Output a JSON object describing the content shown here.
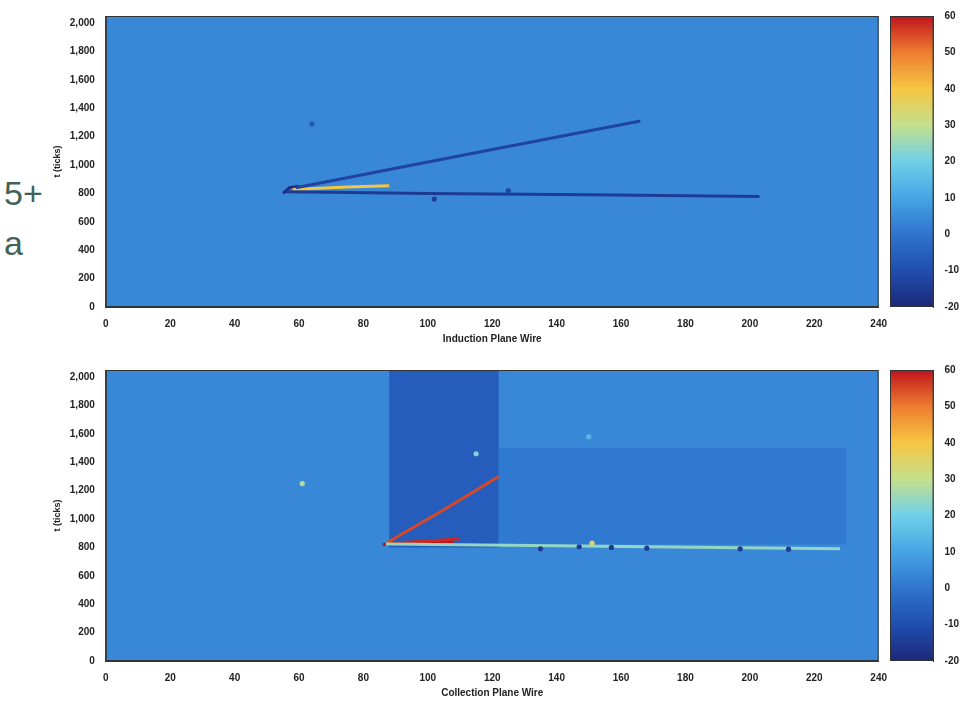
{
  "chart_data": [
    {
      "type": "heatmap",
      "x_label": "Induction Plane Wire",
      "y_label": "t (ticks)",
      "xlim": [
        0,
        240
      ],
      "xticks": [
        0,
        20,
        40,
        60,
        80,
        100,
        120,
        140,
        160,
        180,
        200,
        220,
        240
      ],
      "ylim": [
        0,
        2050
      ],
      "yticks": [
        0,
        200,
        400,
        600,
        800,
        1000,
        1200,
        1400,
        1600,
        1800,
        2000
      ],
      "grid": false,
      "background_value": 4,
      "regions": [],
      "tracks": [
        {
          "points": [
            [
              56,
              812
            ],
            [
              100,
              800
            ],
            [
              150,
              790
            ],
            [
              203,
              778
            ]
          ],
          "value": -15
        },
        {
          "points": [
            [
              59,
              840
            ],
            [
              110,
              1065
            ],
            [
              166,
              1310
            ]
          ],
          "value": -13
        },
        {
          "points": [
            [
              58,
              828
            ],
            [
              75,
              845
            ],
            [
              88,
              855
            ]
          ],
          "value": 40
        },
        {
          "points": [
            [
              55,
              800
            ],
            [
              57,
              840
            ],
            [
              60,
              850
            ]
          ],
          "value": -18
        }
      ],
      "hits": [
        {
          "x": 102,
          "t": 760,
          "value": -14
        },
        {
          "x": 125,
          "t": 820,
          "value": -12
        },
        {
          "x": 64,
          "t": 1290,
          "value": -8
        }
      ],
      "colorbar": {
        "range": [
          -20,
          60
        ],
        "ticks": [
          -20,
          -10,
          0,
          10,
          20,
          30,
          40,
          50,
          60
        ]
      }
    },
    {
      "type": "heatmap",
      "x_label": "Collection Plane Wire",
      "y_label": "t (ticks)",
      "xlim": [
        0,
        240
      ],
      "xticks": [
        0,
        20,
        40,
        60,
        80,
        100,
        120,
        140,
        160,
        180,
        200,
        220,
        240
      ],
      "ylim": [
        0,
        2050
      ],
      "yticks": [
        0,
        200,
        400,
        600,
        800,
        1000,
        1200,
        1400,
        1600,
        1800,
        2000
      ],
      "grid": false,
      "background_value": 4,
      "regions": [
        {
          "points": [
            [
              122,
              820
            ],
            [
              230,
              820
            ],
            [
              230,
              1500
            ],
            [
              122,
              1500
            ]
          ],
          "value": 1
        },
        {
          "points": [
            [
              88,
              800
            ],
            [
              122,
              800
            ],
            [
              122,
              2050
            ],
            [
              88,
              2050
            ]
          ],
          "value": -6
        }
      ],
      "tracks": [
        {
          "points": [
            [
              87,
              825
            ],
            [
              140,
              812
            ],
            [
              190,
              800
            ],
            [
              228,
              790
            ]
          ],
          "value": 24
        },
        {
          "points": [
            [
              87,
              830
            ],
            [
              105,
              1065
            ],
            [
              122,
              1300
            ]
          ],
          "value": 55
        },
        {
          "points": [
            [
              87,
              828
            ],
            [
              100,
              845
            ],
            [
              110,
              862
            ]
          ],
          "value": 58
        },
        {
          "points": [
            [
              86,
              820
            ],
            [
              95,
              825
            ],
            [
              108,
              835
            ]
          ],
          "value": 60
        }
      ],
      "hits": [
        {
          "x": 135,
          "t": 790,
          "value": -15
        },
        {
          "x": 147,
          "t": 805,
          "value": -15
        },
        {
          "x": 151,
          "t": 830,
          "value": 35
        },
        {
          "x": 157,
          "t": 800,
          "value": -15
        },
        {
          "x": 168,
          "t": 795,
          "value": -15
        },
        {
          "x": 197,
          "t": 790,
          "value": -15
        },
        {
          "x": 212,
          "t": 788,
          "value": -15
        },
        {
          "x": 61,
          "t": 1250,
          "value": 28
        },
        {
          "x": 115,
          "t": 1460,
          "value": 22
        },
        {
          "x": 150,
          "t": 1580,
          "value": 14
        }
      ],
      "colorbar": {
        "range": [
          -20,
          60
        ],
        "ticks": [
          -20,
          -10,
          0,
          10,
          20,
          30,
          40,
          50,
          60
        ]
      }
    }
  ],
  "side_texts": [
    "5+",
    "a"
  ]
}
